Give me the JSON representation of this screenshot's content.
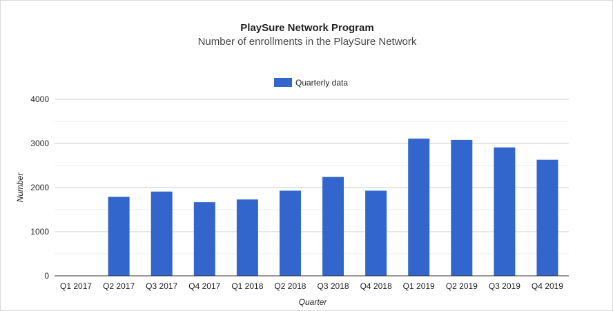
{
  "chart_data": {
    "type": "bar",
    "title": "PlaySure Network Program",
    "subtitle": "Number of enrollments in the PlaySure Network",
    "xlabel": "Quarter",
    "ylabel": "Number",
    "categories": [
      "Q1 2017",
      "Q2 2017",
      "Q3 2017",
      "Q4 2017",
      "Q1 2018",
      "Q2 2018",
      "Q3 2018",
      "Q4 2018",
      "Q1 2019",
      "Q2 2019",
      "Q3 2019",
      "Q4 2019"
    ],
    "series": [
      {
        "name": "Quarterly data",
        "color": "#3366cc",
        "values": [
          0,
          1790,
          1910,
          1670,
          1730,
          1930,
          2240,
          1930,
          3110,
          3080,
          2910,
          2630
        ]
      }
    ],
    "ylim": [
      0,
      4000
    ],
    "yticks": [
      0,
      1000,
      2000,
      3000,
      4000
    ],
    "grid": true,
    "legend_position": "top"
  }
}
